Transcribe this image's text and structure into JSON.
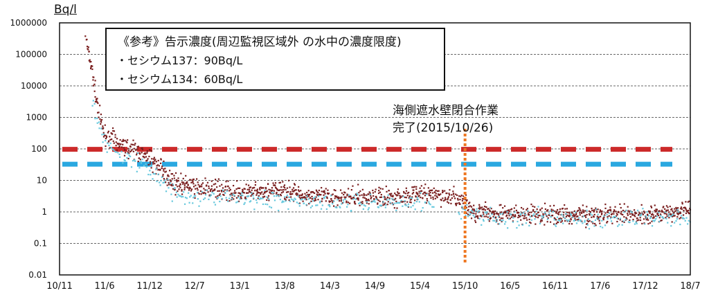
{
  "chart_data": {
    "type": "scatter",
    "ylabel_unit": "Bq/l",
    "y_scale": "log",
    "ylim": [
      0.01,
      1000000
    ],
    "y_ticks": [
      "0.01",
      "0.1",
      "1",
      "10",
      "100",
      "1000",
      "10000",
      "100000",
      "1000000"
    ],
    "x_ticks": [
      "10/11",
      "11/6",
      "11/12",
      "12/7",
      "13/1",
      "13/8",
      "14/3",
      "14/9",
      "15/4",
      "15/10",
      "16/5",
      "16/11",
      "17/6",
      "17/12",
      "18/7"
    ],
    "grid": "horizontal",
    "legend": {
      "title": "《参考》告示濃度(周辺監視区域外 の水中の濃度限度)",
      "entries": [
        {
          "label": "・セシウム137：90Bq/L",
          "color": "#cc2a2a",
          "value": 90
        },
        {
          "label": "・セシウム134：60Bq/L",
          "color": "#2aa8e0",
          "value": 60
        }
      ]
    },
    "annotation": {
      "line1": "海側遮水壁閉合作業",
      "line2": "完了(2015/10/26)",
      "x_tick": "15/10",
      "color": "#ee7722"
    },
    "series": [
      {
        "color": "#7a1f1f",
        "points_approx": [
          [
            "11/3",
            400000
          ],
          [
            "11/4",
            40000
          ],
          [
            "11/5",
            1500
          ],
          [
            "11/6",
            300
          ],
          [
            "11/8",
            150
          ],
          [
            "11/10",
            90
          ],
          [
            "11/12",
            50
          ],
          [
            "12/4",
            8
          ],
          [
            "12/7",
            6
          ],
          [
            "12/10",
            5
          ],
          [
            "13/1",
            4
          ],
          [
            "13/4",
            4
          ],
          [
            "13/8",
            5
          ],
          [
            "13/12",
            3
          ],
          [
            "14/3",
            3
          ],
          [
            "14/9",
            3
          ],
          [
            "15/1",
            3
          ],
          [
            "15/4",
            4
          ],
          [
            "15/8",
            3
          ],
          [
            "15/10",
            2
          ],
          [
            "15/11",
            1
          ],
          [
            "16/5",
            0.8
          ],
          [
            "16/11",
            0.8
          ],
          [
            "17/6",
            0.8
          ],
          [
            "17/12",
            0.8
          ],
          [
            "18/7",
            1.2
          ]
        ]
      },
      {
        "color": "#66c8dd",
        "points_approx": [
          [
            "11/4",
            3000
          ],
          [
            "11/6",
            200
          ],
          [
            "11/8",
            60
          ],
          [
            "11/12",
            25
          ],
          [
            "12/4",
            4
          ],
          [
            "12/7",
            3
          ],
          [
            "13/1",
            2.5
          ],
          [
            "13/8",
            2.5
          ],
          [
            "14/3",
            2
          ],
          [
            "14/9",
            2
          ],
          [
            "15/4",
            2
          ],
          [
            "15/10",
            1
          ],
          [
            "16/5",
            0.6
          ],
          [
            "17/6",
            0.6
          ],
          [
            "18/7",
            0.7
          ]
        ]
      }
    ]
  }
}
